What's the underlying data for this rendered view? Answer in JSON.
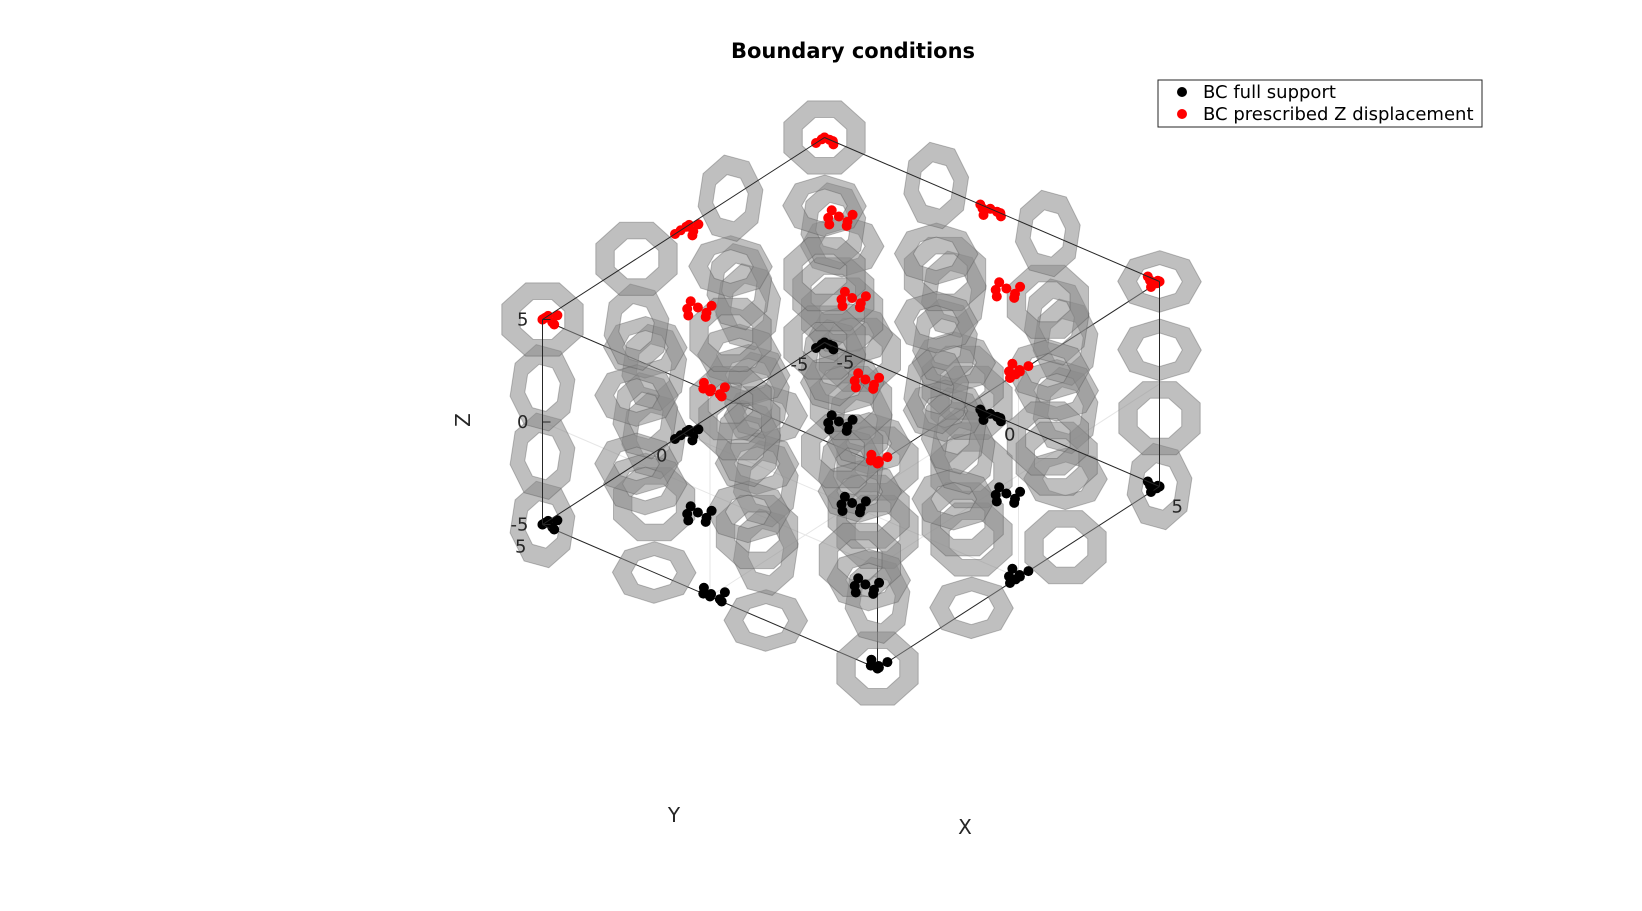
{
  "chart_data": {
    "type": "scatter",
    "title": "Boundary conditions",
    "xlabel": "X",
    "ylabel": "Y",
    "zlabel": "Z",
    "xlim": [
      -5,
      5
    ],
    "ylim": [
      -5,
      5
    ],
    "zlim": [
      -5,
      5
    ],
    "xticks": [
      "-5",
      "0",
      "5"
    ],
    "yticks": [
      "-5",
      "0",
      "5"
    ],
    "zticks": [
      "-5",
      "0",
      "5"
    ],
    "grid": true,
    "legend_location": "top-right",
    "lattice": {
      "cells_per_axis": 3,
      "color": "#8a8a8a",
      "opacity": 0.55
    },
    "series": [
      {
        "name": "BC full support",
        "color": "#000000",
        "z": -5,
        "clusters_xy": [
          [
            -5,
            -5
          ],
          [
            -5,
            0
          ],
          [
            -5,
            5
          ],
          [
            0,
            -5
          ],
          [
            0,
            0
          ],
          [
            0,
            5
          ],
          [
            5,
            -5
          ],
          [
            5,
            0
          ],
          [
            5,
            5
          ],
          [
            -2.5,
            -2.5
          ],
          [
            -2.5,
            2.5
          ],
          [
            2.5,
            -2.5
          ],
          [
            2.5,
            2.5
          ]
        ]
      },
      {
        "name": "BC prescribed Z displacement",
        "color": "#ff0000",
        "z": 5,
        "clusters_xy": [
          [
            -5,
            -5
          ],
          [
            -5,
            0
          ],
          [
            -5,
            5
          ],
          [
            0,
            -5
          ],
          [
            0,
            0
          ],
          [
            0,
            5
          ],
          [
            5,
            -5
          ],
          [
            5,
            0
          ],
          [
            5,
            5
          ],
          [
            -2.5,
            -2.5
          ],
          [
            -2.5,
            2.5
          ],
          [
            2.5,
            -2.5
          ],
          [
            2.5,
            2.5
          ]
        ]
      }
    ]
  }
}
